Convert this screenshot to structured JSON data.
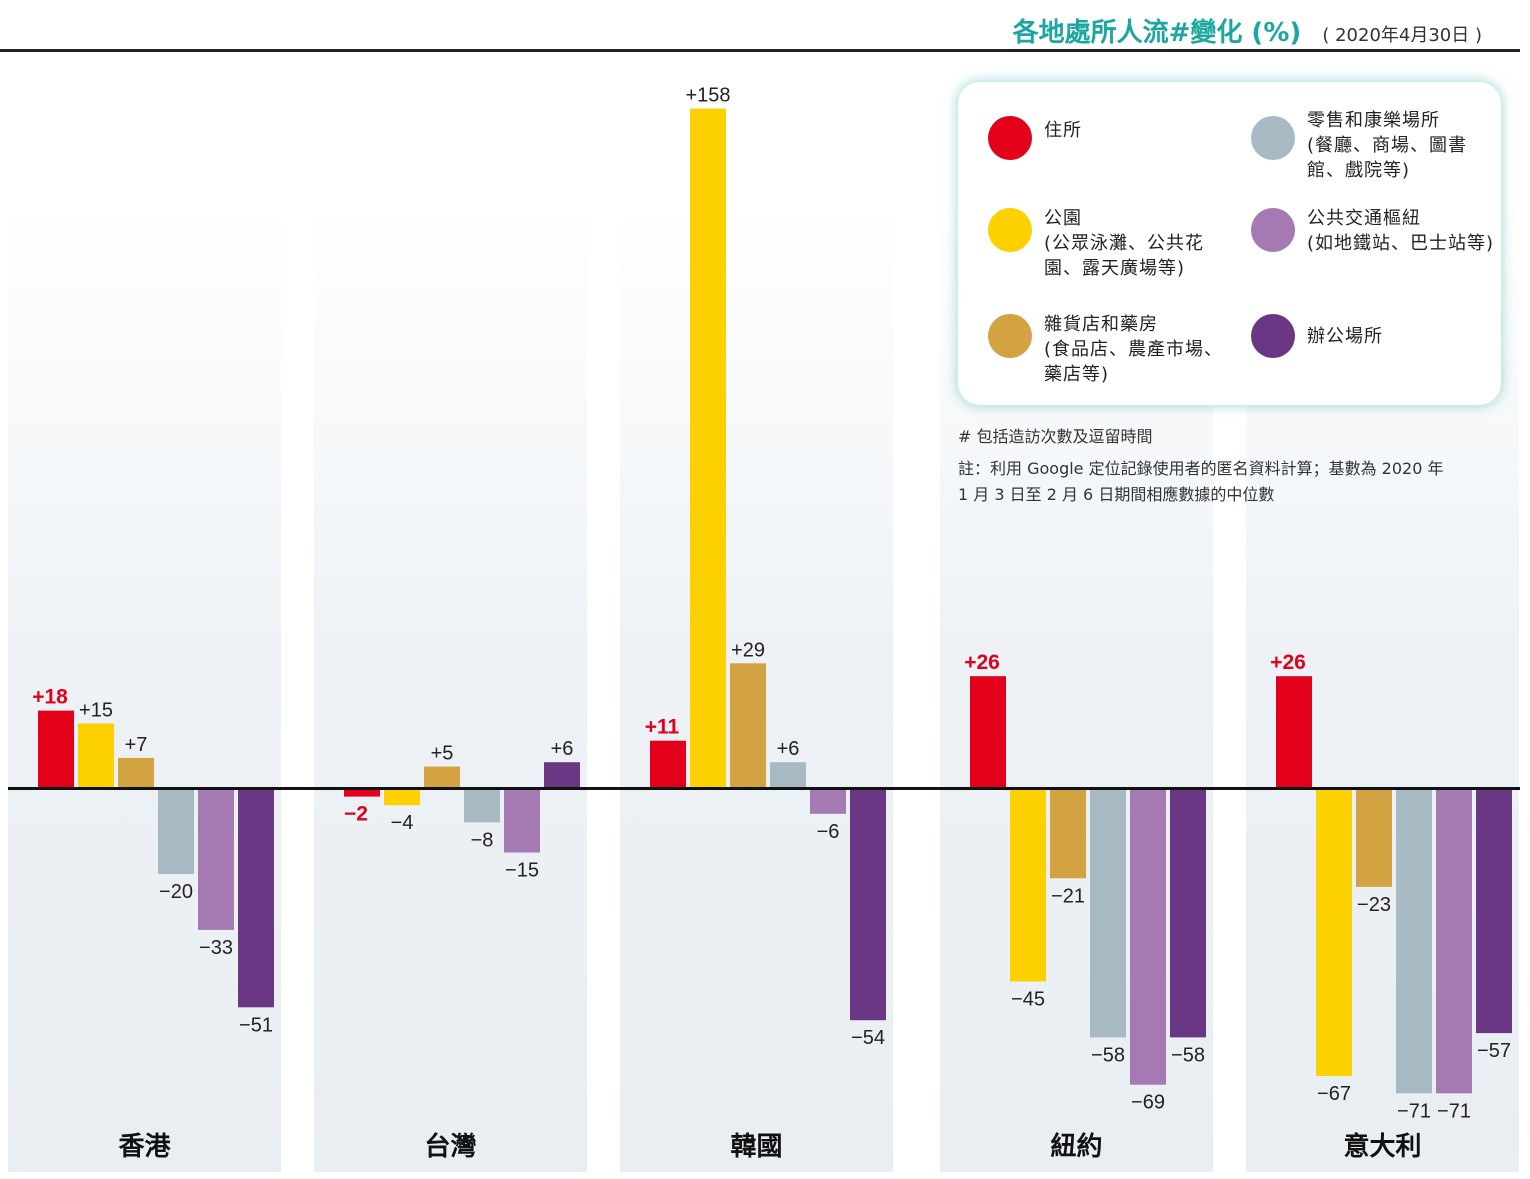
{
  "title": "各地處所人流#變化 (%)",
  "date": "( 2020年4月30日 )",
  "legend": [
    {
      "label": "住所\n",
      "color": "#e2001a"
    },
    {
      "label": "零售和康樂場所\n(餐廳、商場、圖書館、戲院等)",
      "color": "#a7bac3"
    },
    {
      "label": "公園\n(公眾泳灘、公共花園、露天廣場等)",
      "color": "#fdd000"
    },
    {
      "label": "公共交通樞紐\n(如地鐵站、巴士站等)",
      "color": "#a579b2"
    },
    {
      "label": "雜貨店和藥房\n(食品店、農產市場、藥店等)",
      "color": "#d4a341"
    },
    {
      "label": "辦公場所",
      "color": "#6a3784"
    }
  ],
  "notes": {
    "note1": "# 包括造訪次數及逗留時間",
    "note2": "註：利用 Google 定位記錄使用者的匿名資料計算；基數為 2020 年\n      1 月 3 日至 2 月 6 日期間相應數據的中位數"
  },
  "colors": {
    "residential": "#e2001a",
    "parks": "#fdd000",
    "grocery": "#d4a341",
    "retail": "#a7bac3",
    "transit": "#a579b2",
    "workplaces": "#6a3784",
    "accent": "#1ba7a0"
  },
  "chart_data": {
    "type": "bar",
    "categories": [
      "香港",
      "台灣",
      "韓國",
      "紐約",
      "意大利"
    ],
    "series": [
      {
        "name": "住所",
        "values": [
          18,
          -2,
          11,
          26,
          26
        ],
        "labels": [
          "+18",
          "−2",
          "+11",
          "+26",
          "+26"
        ]
      },
      {
        "name": "公園",
        "values": [
          15,
          -4,
          158,
          -45,
          -67
        ],
        "labels": [
          "+15",
          "−4",
          "+158",
          "−45",
          "−67"
        ]
      },
      {
        "name": "雜貨店和藥房",
        "values": [
          7,
          5,
          29,
          -21,
          -23
        ],
        "labels": [
          "+7",
          "+5",
          "+29",
          "−21",
          "−23"
        ]
      },
      {
        "name": "零售和康樂場所",
        "values": [
          -20,
          -8,
          6,
          -58,
          -71
        ],
        "labels": [
          "−20",
          "−8",
          "+6",
          "−58",
          "−71"
        ]
      },
      {
        "name": "公共交通樞紐",
        "values": [
          -33,
          -15,
          -6,
          -69,
          -71
        ],
        "labels": [
          "−33",
          "−15",
          "−6",
          "−69",
          "−71"
        ]
      },
      {
        "name": "辦公場所",
        "values": [
          -51,
          6,
          -54,
          -58,
          -57
        ],
        "labels": [
          "−51",
          "+6",
          "−54",
          "−58",
          "−57"
        ]
      }
    ],
    "unit": "%",
    "grid": false,
    "legend_position": "top-right"
  }
}
